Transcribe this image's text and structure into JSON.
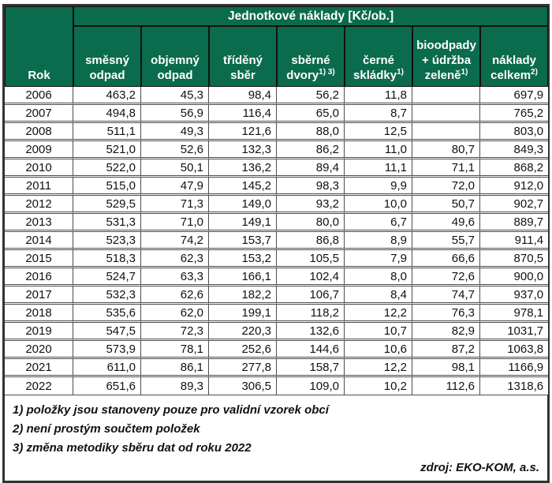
{
  "colors": {
    "header_green": "#0b6b4d",
    "header_text": "#ffffff",
    "grid_line": "#4d4d4d"
  },
  "table": {
    "title": "Jednotkové náklady [Kč/ob.]",
    "rok_header": "Rok",
    "columns": [
      {
        "line1": "směsný",
        "line2": "odpad",
        "sup": ""
      },
      {
        "line1": "objemný",
        "line2": "odpad",
        "sup": ""
      },
      {
        "line1": "tříděný",
        "line2": "sběr",
        "sup": ""
      },
      {
        "line1": "sběrné",
        "line2": "dvory",
        "sup": "1) 3)"
      },
      {
        "line1": "černé",
        "line2": "skládky",
        "sup": "1)"
      },
      {
        "line1": "bioodpady",
        "line2": "+ údržba",
        "line3": "zeleně",
        "sup": "1)"
      },
      {
        "line1": "náklady",
        "line2": "celkem",
        "sup": "2)"
      }
    ],
    "rows": [
      {
        "year": "2006",
        "values": [
          "463,2",
          "45,3",
          "98,4",
          "56,2",
          "11,8",
          "",
          "697,9"
        ]
      },
      {
        "year": "2007",
        "values": [
          "494,8",
          "56,9",
          "116,4",
          "65,0",
          "8,7",
          "",
          "765,2"
        ]
      },
      {
        "year": "2008",
        "values": [
          "511,1",
          "49,3",
          "121,6",
          "88,0",
          "12,5",
          "",
          "803,0"
        ]
      },
      {
        "year": "2009",
        "values": [
          "521,0",
          "52,6",
          "132,3",
          "86,2",
          "11,0",
          "80,7",
          "849,3"
        ]
      },
      {
        "year": "2010",
        "values": [
          "522,0",
          "50,1",
          "136,2",
          "89,4",
          "11,1",
          "71,1",
          "868,2"
        ]
      },
      {
        "year": "2011",
        "values": [
          "515,0",
          "47,9",
          "145,2",
          "98,3",
          "9,9",
          "72,0",
          "912,0"
        ]
      },
      {
        "year": "2012",
        "values": [
          "529,5",
          "71,3",
          "149,0",
          "93,2",
          "10,0",
          "50,7",
          "902,7"
        ]
      },
      {
        "year": "2013",
        "values": [
          "531,3",
          "71,0",
          "149,1",
          "80,0",
          "6,7",
          "49,6",
          "889,7"
        ]
      },
      {
        "year": "2014",
        "values": [
          "523,3",
          "74,2",
          "153,7",
          "86,8",
          "8,9",
          "55,7",
          "911,4"
        ]
      },
      {
        "year": "2015",
        "values": [
          "518,3",
          "62,3",
          "153,2",
          "105,5",
          "7,9",
          "66,6",
          "870,5"
        ]
      },
      {
        "year": "2016",
        "values": [
          "524,7",
          "63,3",
          "166,1",
          "102,4",
          "8,0",
          "72,6",
          "900,0"
        ]
      },
      {
        "year": "2017",
        "values": [
          "532,3",
          "62,6",
          "182,2",
          "106,7",
          "8,4",
          "74,7",
          "937,0"
        ]
      },
      {
        "year": "2018",
        "values": [
          "535,6",
          "62,0",
          "199,1",
          "118,2",
          "12,2",
          "76,3",
          "978,1"
        ]
      },
      {
        "year": "2019",
        "values": [
          "547,5",
          "72,3",
          "220,3",
          "132,6",
          "10,7",
          "82,9",
          "1031,7"
        ]
      },
      {
        "year": "2020",
        "values": [
          "573,9",
          "78,1",
          "252,6",
          "144,6",
          "10,6",
          "87,2",
          "1063,8"
        ]
      },
      {
        "year": "2021",
        "values": [
          "611,0",
          "86,1",
          "277,8",
          "158,7",
          "12,2",
          "98,1",
          "1166,9"
        ]
      },
      {
        "year": "2022",
        "values": [
          "651,6",
          "89,3",
          "306,5",
          "109,0",
          "10,2",
          "112,6",
          "1318,6"
        ]
      }
    ],
    "footnotes": [
      "1) položky jsou stanoveny pouze pro validní vzorek obcí",
      "2) není prostým součtem položek",
      "3) změna metodiky sběru dat od roku 2022"
    ],
    "source": "zdroj: EKO-KOM, a.s."
  }
}
